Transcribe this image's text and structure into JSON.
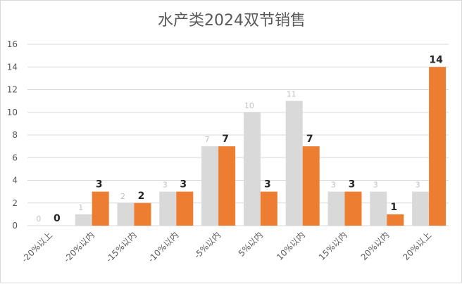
{
  "chart_data": {
    "type": "bar",
    "title": "水产类2024双节销售",
    "categories": [
      "-20%以上",
      "-20%以内",
      "-15%以内",
      "-10%以内",
      "-5%以内",
      "5%以内",
      "10%以内",
      "15%以内",
      "20%以内",
      "20%以上"
    ],
    "series": [
      {
        "values": [
          0,
          1,
          2,
          3,
          7,
          10,
          11,
          3,
          3,
          3
        ],
        "color": "#d9d9d9"
      },
      {
        "values": [
          0,
          3,
          2,
          3,
          7,
          3,
          7,
          3,
          1,
          14
        ],
        "color": "#ed7d31"
      }
    ],
    "ylim": [
      0,
      16
    ],
    "yticks": [
      0,
      2,
      4,
      6,
      8,
      10,
      12,
      14,
      16
    ],
    "grid": true,
    "xlabel": "",
    "ylabel": ""
  }
}
